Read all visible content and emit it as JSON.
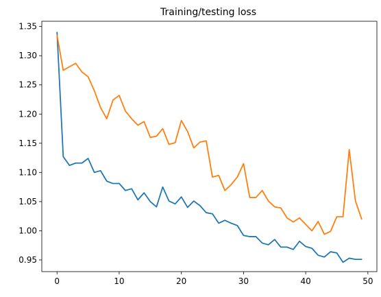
{
  "chart_data": {
    "type": "line",
    "title": "Training/testing loss",
    "xlabel": "",
    "ylabel": "",
    "xlim": [
      -2.45,
      51.45
    ],
    "ylim": [
      0.93,
      1.359
    ],
    "grid": false,
    "legend": "none",
    "x_ticks": [
      0,
      10,
      20,
      30,
      40,
      50
    ],
    "y_ticks": [
      0.95,
      1.0,
      1.05,
      1.1,
      1.15,
      1.2,
      1.25,
      1.3,
      1.35
    ],
    "x": [
      0,
      1,
      2,
      3,
      4,
      5,
      6,
      7,
      8,
      9,
      10,
      11,
      12,
      13,
      14,
      15,
      16,
      17,
      18,
      19,
      20,
      21,
      22,
      23,
      24,
      25,
      26,
      27,
      28,
      29,
      30,
      31,
      32,
      33,
      34,
      35,
      36,
      37,
      38,
      39,
      40,
      41,
      42,
      43,
      44,
      45,
      46,
      47,
      48,
      49
    ],
    "series": [
      {
        "color": "#1f77b4",
        "values": [
          1.34,
          1.127,
          1.112,
          1.116,
          1.116,
          1.124,
          1.1,
          1.103,
          1.085,
          1.081,
          1.081,
          1.069,
          1.072,
          1.053,
          1.065,
          1.05,
          1.041,
          1.075,
          1.051,
          1.046,
          1.058,
          1.04,
          1.051,
          1.043,
          1.031,
          1.029,
          1.013,
          1.018,
          1.013,
          1.009,
          0.992,
          0.99,
          0.99,
          0.979,
          0.976,
          0.985,
          0.972,
          0.972,
          0.968,
          0.982,
          0.973,
          0.97,
          0.958,
          0.955,
          0.964,
          0.962,
          0.946,
          0.953,
          0.951,
          0.951
        ]
      },
      {
        "color": "#ff7f0e",
        "values": [
          1.335,
          1.275,
          1.281,
          1.287,
          1.272,
          1.264,
          1.24,
          1.211,
          1.192,
          1.224,
          1.232,
          1.205,
          1.192,
          1.181,
          1.187,
          1.16,
          1.162,
          1.175,
          1.148,
          1.151,
          1.189,
          1.17,
          1.142,
          1.152,
          1.154,
          1.092,
          1.095,
          1.069,
          1.079,
          1.092,
          1.115,
          1.057,
          1.057,
          1.069,
          1.051,
          1.041,
          1.039,
          1.022,
          1.015,
          1.022,
          1.011,
          1.0,
          1.016,
          0.994,
          0.999,
          1.024,
          1.024,
          1.139,
          1.051,
          1.02
        ]
      }
    ]
  }
}
